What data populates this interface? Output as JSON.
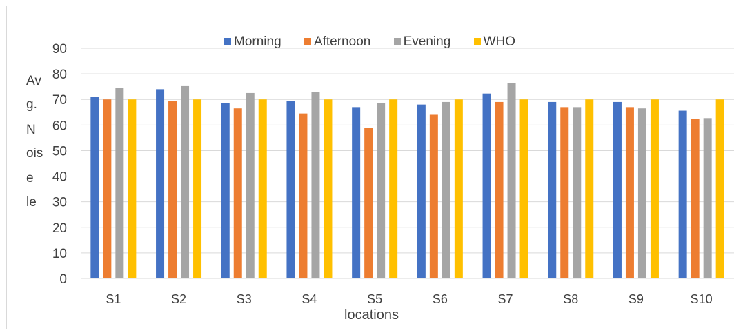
{
  "chart_data": {
    "type": "bar",
    "title": "",
    "xlabel": "locations",
    "ylabel": "Avg. Noise le",
    "ylabel_fragments": [
      "Av",
      "g.",
      "N",
      "ois",
      "e",
      "le"
    ],
    "ylim": [
      0,
      90
    ],
    "yticks": [
      "0",
      "10",
      "20",
      "30",
      "40",
      "50",
      "60",
      "70",
      "80",
      "90"
    ],
    "grid": true,
    "legend_position": "top",
    "categories": [
      "S1",
      "S2",
      "S3",
      "S4",
      "S5",
      "S6",
      "S7",
      "S8",
      "S9",
      "S10"
    ],
    "series": [
      {
        "name": "Morning",
        "color": "#4472C4",
        "values": [
          71,
          74,
          68.7,
          69.3,
          67,
          68,
          72.3,
          69,
          69,
          65.6
        ]
      },
      {
        "name": "Afternoon",
        "color": "#ED7D31",
        "values": [
          70,
          69.5,
          66.5,
          64.5,
          59,
          64,
          69,
          67,
          67,
          62.3
        ]
      },
      {
        "name": "Evening",
        "color": "#A5A5A5",
        "values": [
          74.5,
          75.2,
          72.5,
          73,
          68.7,
          69,
          76.5,
          67,
          66.5,
          62.7
        ]
      },
      {
        "name": "WHO",
        "color": "#FFC000",
        "values": [
          70,
          70,
          70,
          70,
          70,
          70,
          70,
          70,
          70,
          70
        ]
      }
    ]
  }
}
